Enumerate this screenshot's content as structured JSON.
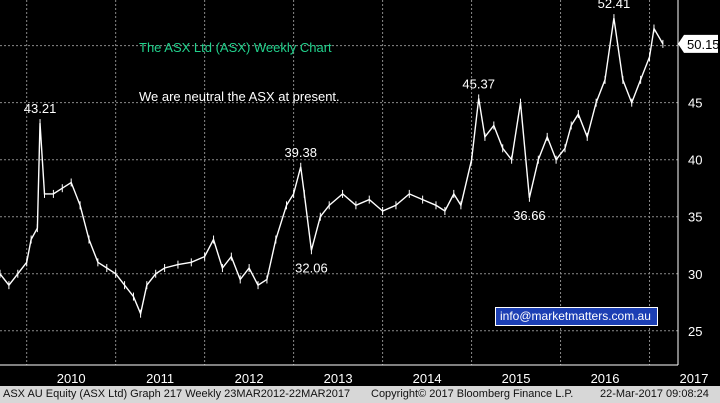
{
  "chart_data": {
    "type": "line",
    "title": "The ASX Ltd (ASX) Weekly Chart",
    "subtitle": "We are neutral the ASX at present.",
    "x_tick_labels": [
      "2010",
      "2011",
      "2012",
      "2013",
      "2014",
      "2015",
      "2016",
      "2017"
    ],
    "ylim": [
      22,
      54
    ],
    "y_ticks": [
      25,
      30,
      35,
      40,
      45,
      50
    ],
    "last_value_label": "50.15",
    "last_value": 50.15,
    "series": [
      {
        "x": [
          2009.7,
          2009.8,
          2009.9,
          2010.0,
          2010.05,
          2010.12,
          2010.15,
          2010.2,
          2010.3,
          2010.4,
          2010.5,
          2010.6,
          2010.7,
          2010.8,
          2010.9,
          2011.0,
          2011.1,
          2011.2,
          2011.28,
          2011.35,
          2011.45,
          2011.55,
          2011.7,
          2011.85,
          2012.0,
          2012.1,
          2012.2,
          2012.3,
          2012.4,
          2012.5,
          2012.6,
          2012.7,
          2012.8,
          2012.92,
          2013.0,
          2013.08,
          2013.12,
          2013.2,
          2013.3,
          2013.4,
          2013.55,
          2013.7,
          2013.85,
          2014.0,
          2014.15,
          2014.3,
          2014.45,
          2014.6,
          2014.7,
          2014.8,
          2014.88,
          2015.0,
          2015.08,
          2015.15,
          2015.25,
          2015.35,
          2015.45,
          2015.55,
          2015.65,
          2015.75,
          2015.85,
          2015.95,
          2016.05,
          2016.12,
          2016.2,
          2016.3,
          2016.4,
          2016.5,
          2016.6,
          2016.7,
          2016.8,
          2016.9,
          2017.0,
          2017.05,
          2017.15
        ],
        "values": [
          30.0,
          29.0,
          30.0,
          31.0,
          33.0,
          34.0,
          43.21,
          37.0,
          37.0,
          37.5,
          38.0,
          36.0,
          33.0,
          31.0,
          30.5,
          30.0,
          29.0,
          28.0,
          26.5,
          29.0,
          30.0,
          30.5,
          30.8,
          31.0,
          31.5,
          33.0,
          30.5,
          31.5,
          29.5,
          30.5,
          29.0,
          29.5,
          33.0,
          36.0,
          37.0,
          39.38,
          37.0,
          32.06,
          35.0,
          36.0,
          37.0,
          36.0,
          36.5,
          35.5,
          36.0,
          37.0,
          36.5,
          36.0,
          35.5,
          37.0,
          36.0,
          40.0,
          45.37,
          42.0,
          43.0,
          41.0,
          40.0,
          45.0,
          36.66,
          40.0,
          42.0,
          40.0,
          41.0,
          43.0,
          44.0,
          42.0,
          45.0,
          47.0,
          52.41,
          47.0,
          45.0,
          47.0,
          49.0,
          51.5,
          50.15
        ]
      }
    ],
    "annotations": [
      {
        "text": "43.21",
        "x": 2010.15,
        "y": 43.21
      },
      {
        "text": "39.38",
        "x": 2013.08,
        "y": 39.38
      },
      {
        "text": "32.06",
        "x": 2013.2,
        "y": 32.06
      },
      {
        "text": "45.37",
        "x": 2015.08,
        "y": 45.37
      },
      {
        "text": "36.66",
        "x": 2015.65,
        "y": 36.66
      },
      {
        "text": "52.41",
        "x": 2016.6,
        "y": 52.41
      }
    ],
    "grid": true,
    "colors": {
      "background": "#000000",
      "line": "#ffffff",
      "grid": "#8a8a8a",
      "title": "#21d18c",
      "info_box": "#1c3fb4"
    }
  },
  "info_box_text": "info@marketmatters.com.au",
  "footer": {
    "left": "ASX AU Equity (ASX Ltd) Graph 217  Weekly 23MAR2012-22MAR2017",
    "middle": "Copyright© 2017 Bloomberg Finance L.P.",
    "right": "22-Mar-2017 09:08:24"
  }
}
